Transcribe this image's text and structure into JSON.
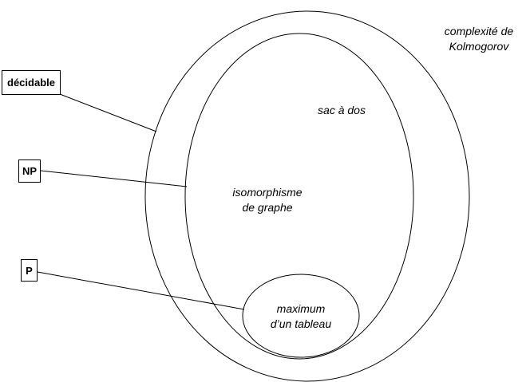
{
  "diagram": {
    "line_color": "#000000",
    "background": "#ffffff",
    "classes": [
      {
        "id": "decidable",
        "label": "décidable"
      },
      {
        "id": "np",
        "label": "NP"
      },
      {
        "id": "p",
        "label": "P"
      }
    ],
    "problems": {
      "kolmogorov": {
        "line1": "complexité de",
        "line2": "Kolmogorov"
      },
      "sac_a_dos": "sac à dos",
      "isomorphisme": {
        "line1": "isomorphisme",
        "line2": "de graphe"
      },
      "maximum": {
        "line1": "maximum",
        "line2": "d’un tableau"
      }
    }
  }
}
